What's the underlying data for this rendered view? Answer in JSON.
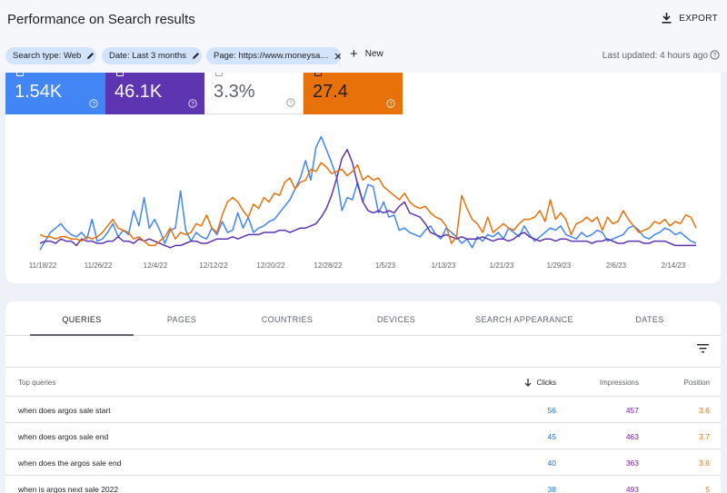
{
  "header": {
    "title": "Performance on Search results",
    "export_label": "EXPORT"
  },
  "filters": {
    "chips": [
      "Search type: Web",
      "Date: Last 3 months",
      "Page: https://www.moneysa…"
    ],
    "new_label": "New",
    "last_updated": "Last updated: 4 hours ago"
  },
  "metrics": [
    {
      "value": "1.54K",
      "color": "#4285f4"
    },
    {
      "value": "46.1K",
      "color": "#5e35b1"
    },
    {
      "value": "3.3%",
      "color": "#ffffff"
    },
    {
      "value": "27.4",
      "color": "#e8710a"
    }
  ],
  "chart_data": {
    "type": "line",
    "x_ticks": [
      "11/18/22",
      "11/26/22",
      "12/4/22",
      "12/12/22",
      "12/20/22",
      "12/28/22",
      "1/5/23",
      "1/13/23",
      "1/21/23",
      "1/29/23",
      "2/6/23",
      "2/14/23"
    ],
    "series": [
      {
        "color": "#4285f4",
        "values": [
          2,
          6,
          10,
          12,
          14,
          11,
          9,
          8,
          10,
          7,
          16,
          6,
          7,
          10,
          14,
          8,
          11,
          9,
          20,
          13,
          26,
          12,
          16,
          11,
          5,
          11,
          12,
          29,
          11,
          6,
          10,
          8,
          7,
          12,
          9,
          15,
          10,
          11,
          19,
          12,
          17,
          10,
          12,
          13,
          15,
          16,
          19,
          22,
          25,
          30,
          35,
          43,
          34,
          49,
          54,
          48,
          42,
          35,
          20,
          26,
          25,
          33,
          24,
          32,
          31,
          19,
          24,
          17,
          18,
          11,
          12,
          10,
          9,
          8,
          11,
          13,
          9,
          7,
          12,
          10,
          8,
          5,
          7,
          3,
          8,
          6,
          9,
          8,
          10,
          7,
          12,
          10,
          8,
          13,
          9,
          6,
          8,
          10,
          12,
          11,
          13,
          9,
          8,
          7,
          10,
          8,
          9,
          11,
          10,
          6,
          7,
          8,
          9,
          12,
          13,
          11,
          8,
          7,
          9,
          10,
          12,
          11,
          9,
          10,
          8,
          6,
          5
        ],
        "note": ""
      },
      {
        "color": "#5e35b1",
        "values": [
          5,
          6,
          6,
          5,
          7,
          6,
          6,
          4,
          7,
          6,
          6,
          5,
          5,
          6,
          6,
          8,
          6,
          6,
          5,
          7,
          6,
          7,
          6,
          5,
          4,
          3,
          4,
          4,
          5,
          6,
          6,
          5,
          5,
          6,
          7,
          7,
          7,
          8,
          7,
          8,
          9,
          9,
          9,
          10,
          10,
          10,
          11,
          11,
          10,
          11,
          12,
          12,
          13,
          14,
          17,
          21,
          27,
          35,
          44,
          48,
          42,
          32,
          24,
          20,
          19,
          20,
          19,
          20,
          19,
          22,
          24,
          19,
          18,
          17,
          14,
          10,
          9,
          8,
          9,
          8,
          7,
          8,
          7,
          7,
          7,
          8,
          7,
          6,
          7,
          7,
          6,
          7,
          9,
          10,
          8,
          7,
          6,
          7,
          7,
          6,
          7,
          7,
          6,
          6,
          6,
          6,
          5,
          6,
          6,
          7,
          6,
          5,
          5,
          6,
          6,
          6,
          5,
          5,
          6,
          6,
          6,
          5,
          4,
          4,
          4,
          4,
          4
        ]
      },
      {
        "color": "#e8710a",
        "values": [
          9,
          8,
          8,
          7,
          8,
          8,
          7,
          7,
          6,
          8,
          7,
          8,
          10,
          13,
          16,
          12,
          11,
          10,
          7,
          8,
          6,
          4,
          4,
          6,
          8,
          12,
          7,
          10,
          9,
          10,
          14,
          13,
          18,
          12,
          10,
          18,
          24,
          26,
          24,
          20,
          17,
          23,
          21,
          26,
          24,
          28,
          27,
          33,
          35,
          30,
          33,
          34,
          39,
          38,
          42,
          40,
          37,
          38,
          39,
          36,
          38,
          41,
          34,
          36,
          34,
          35,
          31,
          29,
          27,
          25,
          28,
          24,
          22,
          21,
          22,
          19,
          17,
          16,
          13,
          5,
          8,
          27,
          21,
          16,
          14,
          10,
          17,
          10,
          12,
          14,
          12,
          11,
          14,
          16,
          16,
          17,
          20,
          15,
          25,
          16,
          19,
          16,
          9,
          14,
          15,
          17,
          15,
          17,
          11,
          17,
          14,
          15,
          20,
          16,
          13,
          10,
          11,
          12,
          15,
          14,
          16,
          13,
          15,
          14,
          18,
          17,
          12
        ]
      }
    ]
  },
  "tabs": [
    "QUERIES",
    "PAGES",
    "COUNTRIES",
    "DEVICES",
    "SEARCH APPEARANCE",
    "DATES"
  ],
  "table": {
    "headers": {
      "query": "Top queries",
      "clicks": "Clicks",
      "impressions": "Impressions",
      "position": "Position"
    },
    "rows": [
      {
        "query": "when does argos sale start",
        "clicks": "56",
        "impressions": "457",
        "position": "3.6"
      },
      {
        "query": "when does argos sale end",
        "clicks": "45",
        "impressions": "463",
        "position": "3.7"
      },
      {
        "query": "when does the argos sale end",
        "clicks": "40",
        "impressions": "363",
        "position": "3.6"
      },
      {
        "query": "when is argos next sale 2022",
        "clicks": "38",
        "impressions": "493",
        "position": "5"
      }
    ]
  }
}
